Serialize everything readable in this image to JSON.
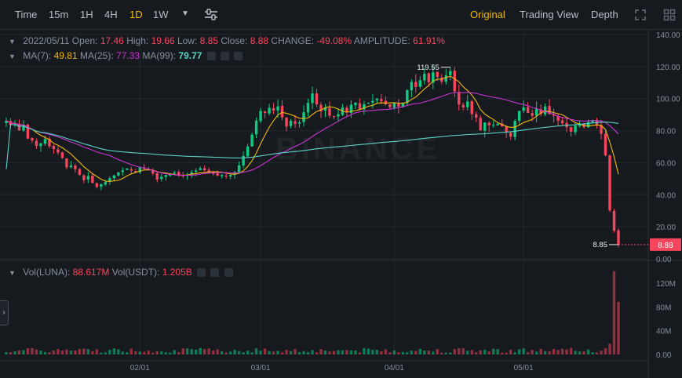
{
  "toolbar": {
    "time_label": "Time",
    "intervals": [
      "15m",
      "1H",
      "4H",
      "1D",
      "1W"
    ],
    "active_interval": "1D",
    "views": [
      "Original",
      "Trading View",
      "Depth"
    ],
    "active_view": "Original"
  },
  "legend": {
    "date": "2022/05/11",
    "open_label": "Open:",
    "open": "17.46",
    "high_label": "High:",
    "high": "19.66",
    "low_label": "Low:",
    "low": "8.85",
    "close_label": "Close:",
    "close": "8.88",
    "change_label": "CHANGE:",
    "change": "-49.08%",
    "amplitude_label": "AMPLITUDE:",
    "amplitude": "61.91%",
    "ma7_label": "MA(7):",
    "ma7": "49.81",
    "ma25_label": "MA(25):",
    "ma25": "77.33",
    "ma99_label": "MA(99):",
    "ma99": "79.77"
  },
  "volume_legend": {
    "vol_luna_label": "Vol(LUNA):",
    "vol_luna": "88.617M",
    "vol_usdt_label": "Vol(USDT):",
    "vol_usdt": "1.205B"
  },
  "watermark": "BINANCE",
  "colors": {
    "up": "#0ecb81",
    "down": "#f6465d",
    "ma7": "#f0b90b",
    "ma25": "#c936d1",
    "ma99": "#5ad2c8",
    "accent": "#f0b90b"
  },
  "chart_data": [
    {
      "type": "candlestick",
      "pair": "LUNA/USDT",
      "interval": "1D",
      "ylim": [
        0,
        140
      ],
      "y_ticks": [
        "140.00",
        "120.00",
        "100.00",
        "80.00",
        "60.00",
        "40.00",
        "20.00",
        "0.00"
      ],
      "x_ticks": [
        "02/01",
        "03/01",
        "04/01",
        "05/01"
      ],
      "price_label": "8.88",
      "high_marker": "119.55",
      "low_marker": "8.85",
      "start_date": "2022-01-01",
      "close": [
        86.2,
        83.5,
        84.1,
        80.2,
        83.7,
        75.0,
        73.9,
        70.5,
        72.0,
        74.8,
        70.2,
        68.5,
        66.3,
        63.0,
        57.1,
        58.2,
        56.0,
        52.4,
        49.1,
        51.7,
        47.3,
        44.8,
        46.5,
        47.9,
        50.3,
        52.1,
        54.0,
        55.2,
        56.3,
        55.1,
        54.0,
        57.2,
        56.1,
        55.5,
        53.2,
        49.5,
        51.2,
        52.3,
        53.1,
        53.8,
        52.2,
        51.7,
        52.5,
        54.0,
        55.1,
        56.5,
        55.3,
        54.2,
        53.0,
        51.9,
        52.3,
        51.5,
        52.3,
        54.1,
        58.3,
        64.2,
        70.1,
        77.5,
        86.2,
        92.3,
        91.1,
        94.2,
        92.5,
        95.1,
        88.3,
        82.5,
        86.1,
        84.3,
        85.2,
        91.5,
        97.3,
        103.2,
        96.4,
        92.1,
        94.5,
        89.3,
        88.5,
        90.2,
        94.5,
        91.3,
        96.2,
        97.5,
        93.4,
        96.5,
        97.1,
        98.6,
        100.1,
        98.3,
        96.4,
        94.5,
        97.2,
        95.1,
        97.3,
        105.3,
        110.4,
        107.2,
        111.5,
        115.5,
        110.1,
        116.4,
        113.5,
        110.6,
        114.5,
        117.2,
        104.5,
        96.3,
        94.5,
        98.2,
        90.3,
        88.1,
        80.2,
        85.1,
        83.3,
        83.6,
        84.2,
        82.6,
        79.1,
        76.3,
        86.1,
        92.3,
        94.5,
        91.1,
        89.2,
        93.6,
        90.3,
        95.1,
        90.2,
        89.3,
        86.1,
        84.6,
        82.1,
        79.3,
        83.2,
        84.5,
        82.1,
        85.4,
        86.6,
        83.4,
        78.1,
        64.5,
        30.2,
        17.5,
        8.88
      ],
      "volume_scale_label": [
        "120M",
        "80M",
        "40M",
        "0.00"
      ]
    }
  ]
}
